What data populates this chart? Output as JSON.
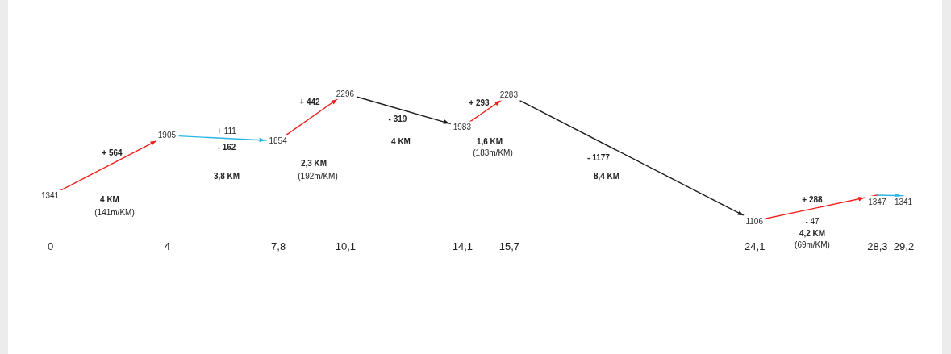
{
  "chart_data": {
    "type": "line",
    "xlim": [
      0,
      29.2
    ],
    "xticks": [
      0,
      4,
      {
        "value": 7.8,
        "label": "7,8"
      },
      {
        "value": 10.1,
        "label": "10,1"
      },
      {
        "value": 14.1,
        "label": "14,1"
      },
      {
        "value": 15.7,
        "label": "15,7"
      },
      {
        "value": 24.1,
        "label": "24,1"
      },
      {
        "value": 28.3,
        "label": "28,3"
      },
      {
        "value": 29.2,
        "label": "29,2"
      }
    ],
    "tick_labels": "x",
    "series": [
      {
        "color": "#f0201c",
        "x": [
          0,
          4
        ],
        "values": [
          1341,
          1905
        ],
        "value_labels": [
          "1341",
          "1905"
        ]
      },
      {
        "color": "#29b6e8",
        "x": [
          4,
          7.8
        ],
        "values": [
          1905,
          1854
        ],
        "value_labels": [
          null,
          "1854"
        ]
      },
      {
        "color": "#f0201c",
        "x": [
          7.8,
          10.1
        ],
        "values": [
          1854,
          2296
        ],
        "value_labels": [
          null,
          "2296"
        ]
      },
      {
        "color": "#1c1c1c",
        "x": [
          10.1,
          14.1
        ],
        "values": [
          2296,
          1983
        ],
        "value_labels": [
          null,
          "1983"
        ]
      },
      {
        "color": "#f0201c",
        "x": [
          14.1,
          15.7
        ],
        "values": [
          1983,
          2283
        ],
        "value_labels": [
          null,
          "2283"
        ]
      },
      {
        "color": "#1c1c1c",
        "x": [
          15.7,
          24.1
        ],
        "values": [
          2283,
          1106
        ],
        "value_labels": [
          null,
          "1106"
        ]
      },
      {
        "color": "#f0201c",
        "x": [
          24.1,
          28.3
        ],
        "values": [
          1106,
          1347
        ],
        "value_labels": [
          null,
          "1347"
        ]
      },
      {
        "color": "#29b6e8",
        "x": [
          28.3,
          29.2
        ],
        "values": [
          1347,
          1341
        ],
        "value_labels": [
          null,
          "1341"
        ]
      }
    ],
    "annotations": [
      "+ 564",
      "4 KM",
      "(141m/KM)",
      "+ 111",
      "- 162",
      "3,8 KM",
      "+ 442",
      "2,3 KM",
      "(192m/KM)",
      "- 319",
      "4 KM",
      "+ 293",
      "1,6 KM",
      "(183m/KM)",
      "- 1177",
      "8,4 KM",
      "+ 288",
      "- 47",
      "4,2 KM",
      "(69m/KM)"
    ]
  }
}
